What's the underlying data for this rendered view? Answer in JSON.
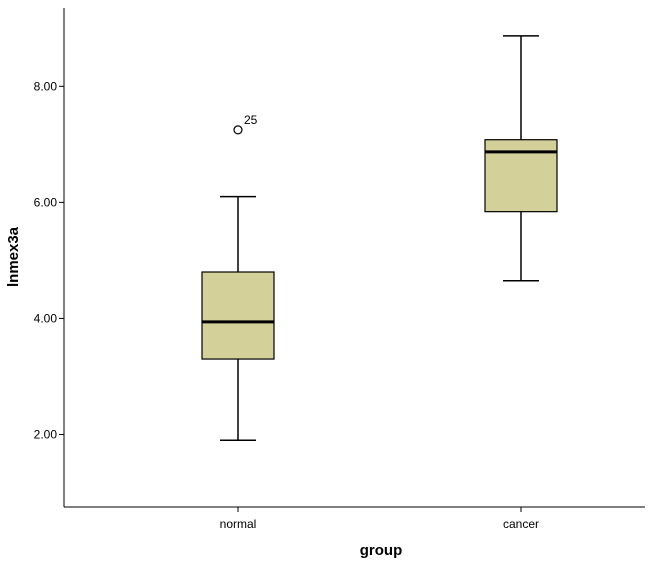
{
  "chart_data": {
    "type": "boxplot",
    "xlabel": "group",
    "ylabel": "lnmex3a",
    "categories": [
      "normal",
      "cancer"
    ],
    "boxes": [
      {
        "category": "normal",
        "whisker_low": 1.9,
        "q1": 3.3,
        "median": 3.94,
        "q3": 4.8,
        "whisker_high": 6.1,
        "outliers": [
          {
            "value": 7.25,
            "label": "25"
          }
        ]
      },
      {
        "category": "cancer",
        "whisker_low": 4.65,
        "q1": 5.84,
        "median": 6.87,
        "q3": 7.08,
        "whisker_high": 8.87,
        "outliers": []
      }
    ],
    "yticks": [
      2.0,
      4.0,
      6.0,
      8.0
    ],
    "ytick_labels": [
      "2.00",
      "4.00",
      "6.00",
      "8.00"
    ],
    "ylim": [
      0.75,
      9.35
    ],
    "grid": false,
    "box_color": "#d4d09a"
  }
}
